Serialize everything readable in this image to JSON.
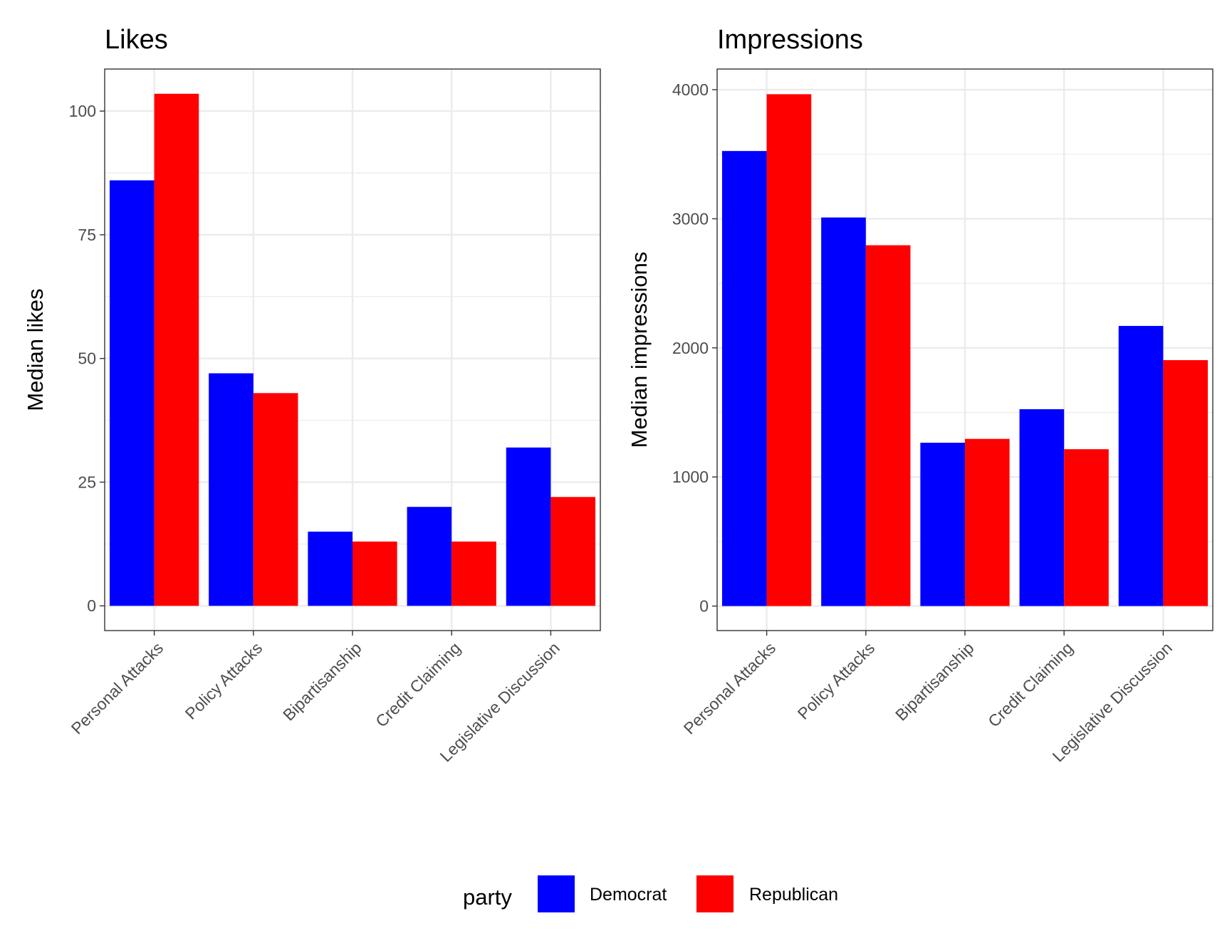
{
  "legend": {
    "title": "party",
    "items": [
      {
        "label": "Democrat",
        "color": "#0000FF"
      },
      {
        "label": "Republican",
        "color": "#FF0000"
      }
    ]
  },
  "chart_data": [
    {
      "type": "bar",
      "title": "Likes",
      "xlabel": "",
      "ylabel": "Median likes",
      "categories": [
        "Personal Attacks",
        "Policy Attacks",
        "Bipartisanship",
        "Credit Claiming",
        "Legislative Discussion"
      ],
      "series": [
        {
          "name": "Democrat",
          "color": "#0000FF",
          "values": [
            86,
            47,
            15,
            20,
            32
          ]
        },
        {
          "name": "Republican",
          "color": "#FF0000",
          "values": [
            103.5,
            43,
            13,
            13,
            22
          ]
        }
      ],
      "ylim": [
        -5,
        108.5
      ],
      "yticks": [
        0,
        25,
        50,
        75,
        100
      ],
      "grid": true,
      "legend_position": "bottom"
    },
    {
      "type": "bar",
      "title": "Impressions",
      "xlabel": "",
      "ylabel": "Median impressions",
      "categories": [
        "Personal Attacks",
        "Policy Attacks",
        "Bipartisanship",
        "Credit Claiming",
        "Legislative Discussion"
      ],
      "series": [
        {
          "name": "Democrat",
          "color": "#0000FF",
          "values": [
            3525,
            3010,
            1265,
            1525,
            2170
          ]
        },
        {
          "name": "Republican",
          "color": "#FF0000",
          "values": [
            3965,
            2795,
            1295,
            1215,
            1905
          ]
        }
      ],
      "ylim": [
        -190,
        4160
      ],
      "yticks": [
        0,
        1000,
        2000,
        3000,
        4000
      ],
      "grid": true,
      "legend_position": "bottom"
    }
  ]
}
